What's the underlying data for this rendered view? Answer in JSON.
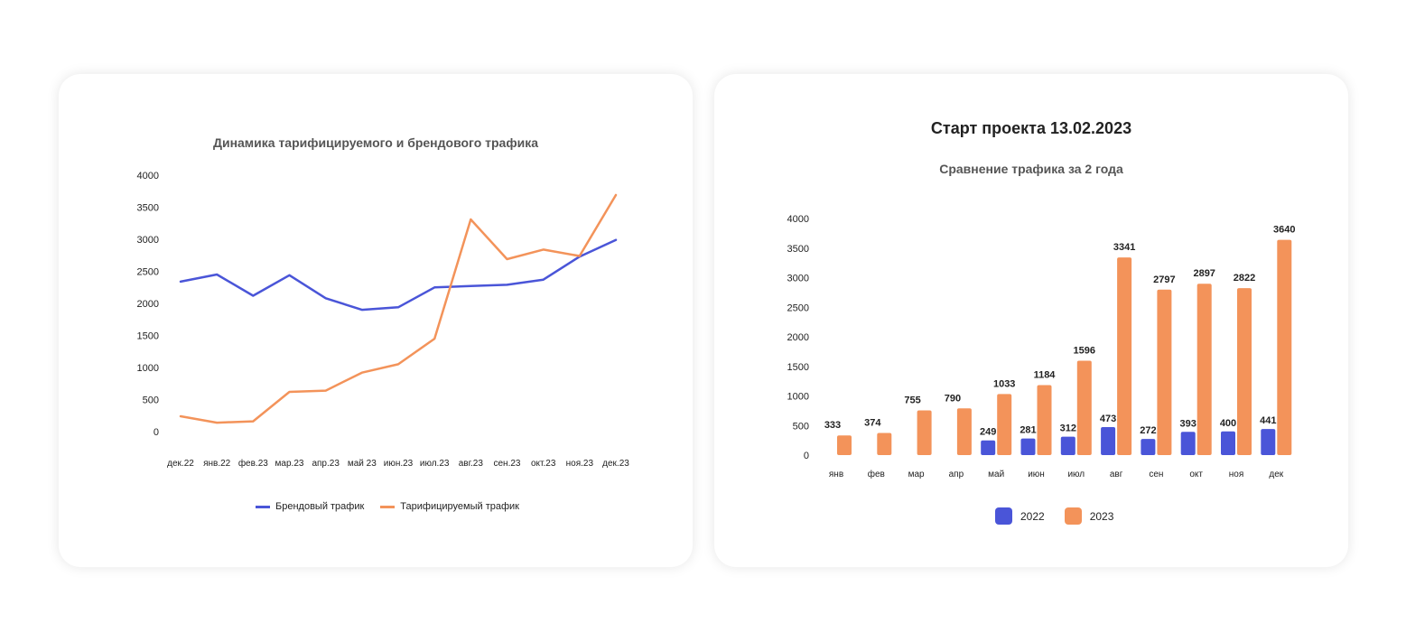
{
  "colors": {
    "brand": "#4a55d8",
    "paid": "#f3935a"
  },
  "line_chart": {
    "title": "Динамика тарифицируемого и брендового трафика",
    "legend": {
      "series_a": "Брендовый трафик",
      "series_b": "Тарифицируемый трафик"
    }
  },
  "bar_chart": {
    "heading": "Старт проекта 13.02.2023",
    "title": "Сравнение трафика за 2 года",
    "legend": {
      "series_a": "2022",
      "series_b": "2023"
    }
  },
  "chart_data": [
    {
      "type": "line",
      "title": "Динамика тарифицируемого и брендового трафика",
      "xlabel": "",
      "ylabel": "",
      "categories": [
        "дек.22",
        "янв.22",
        "фев.23",
        "мар.23",
        "апр.23",
        "май 23",
        "июн.23",
        "июл.23",
        "авг.23",
        "сен.23",
        "окт.23",
        "ноя.23",
        "дек.23"
      ],
      "yticks": [
        0,
        500,
        1000,
        1500,
        2000,
        2500,
        3000,
        3500,
        4000
      ],
      "ylim": [
        0,
        4000
      ],
      "grid": false,
      "legend_position": "bottom",
      "series": [
        {
          "name": "Брендовый трафик",
          "color": "#4a55d8",
          "values": [
            2340,
            2450,
            2120,
            2440,
            2080,
            1900,
            1940,
            2250,
            2270,
            2290,
            2370,
            2730,
            2990
          ]
        },
        {
          "name": "Тарифицируемый трафик",
          "color": "#f3935a",
          "values": [
            240,
            140,
            160,
            620,
            640,
            920,
            1050,
            1450,
            3310,
            2690,
            2840,
            2740,
            3690
          ]
        }
      ]
    },
    {
      "type": "bar",
      "title": "Сравнение трафика за 2 года",
      "xlabel": "",
      "ylabel": "",
      "categories": [
        "янв",
        "фев",
        "мар",
        "апр",
        "май",
        "июн",
        "июл",
        "авг",
        "сен",
        "окт",
        "ноя",
        "дек"
      ],
      "yticks": [
        0,
        500,
        1000,
        1500,
        2000,
        2500,
        3000,
        3500,
        4000
      ],
      "ylim": [
        0,
        4000
      ],
      "grid": false,
      "legend_position": "bottom",
      "series": [
        {
          "name": "2022",
          "color": "#4a55d8",
          "values": [
            null,
            null,
            null,
            null,
            249,
            281,
            312,
            473,
            272,
            393,
            400,
            441
          ]
        },
        {
          "name": "2023",
          "color": "#f3935a",
          "values": [
            333,
            374,
            755,
            790,
            1033,
            1184,
            1596,
            3341,
            2797,
            2897,
            2822,
            3640
          ]
        }
      ]
    }
  ]
}
